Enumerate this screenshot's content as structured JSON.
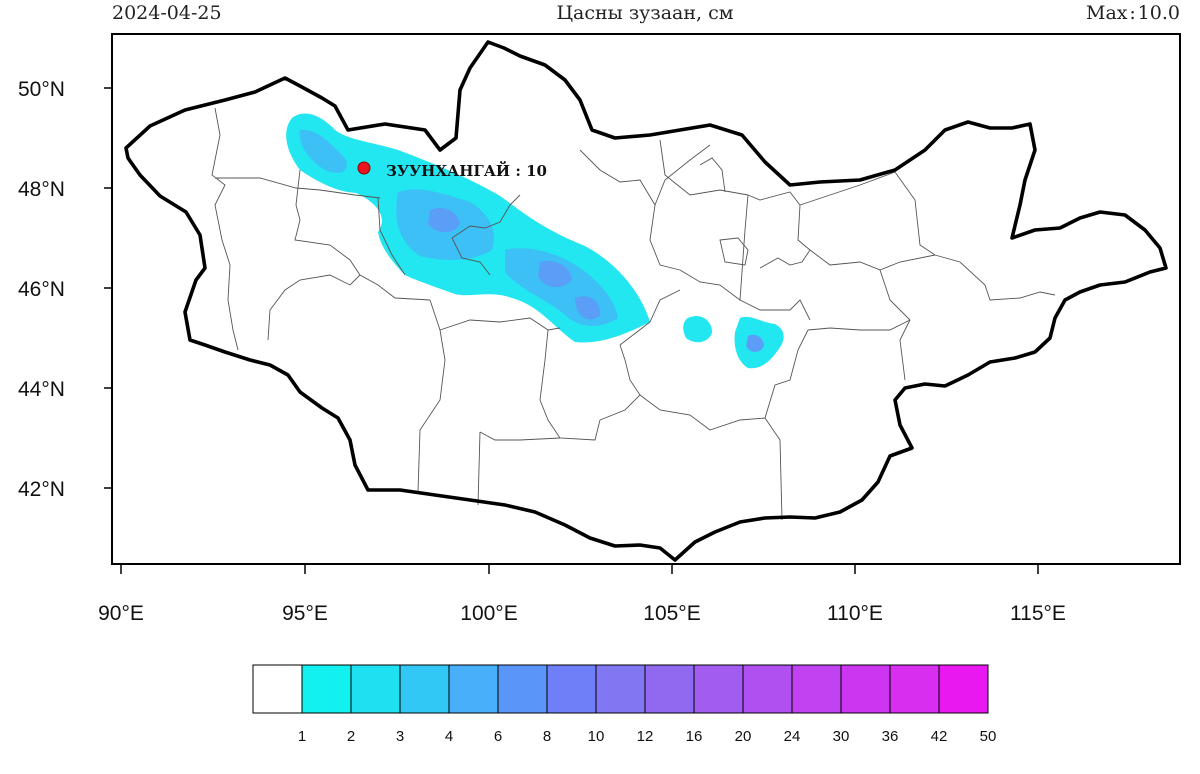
{
  "header": {
    "date": "2024-04-25",
    "title": "Цасны зузаан, см",
    "max_label": "Max : 10.0"
  },
  "map": {
    "lat_labels": [
      "50°N",
      "48°N",
      "46°N",
      "44°N",
      "42°N"
    ],
    "lon_labels": [
      "90°E",
      "95°E",
      "100°E",
      "105°E",
      "110°E",
      "115°E"
    ],
    "station": {
      "name": "ЗУУНХАНГАЙ",
      "value": "10",
      "label": "ЗУУНХАНГАЙ : 10",
      "color": "#e8141e"
    }
  },
  "legend": {
    "colors": [
      "#ffffff",
      "#12f0f0",
      "#1ee0f0",
      "#32c8f5",
      "#48b0fa",
      "#5a96fa",
      "#6e7ff7",
      "#8277f2",
      "#9069f0",
      "#a25cf0",
      "#b050f0",
      "#c042f0",
      "#cc36f0",
      "#d82ef0",
      "#ea18f0"
    ],
    "labels": [
      "1",
      "2",
      "3",
      "4",
      "6",
      "8",
      "10",
      "12",
      "16",
      "20",
      "24",
      "30",
      "36",
      "42",
      "50"
    ]
  }
}
